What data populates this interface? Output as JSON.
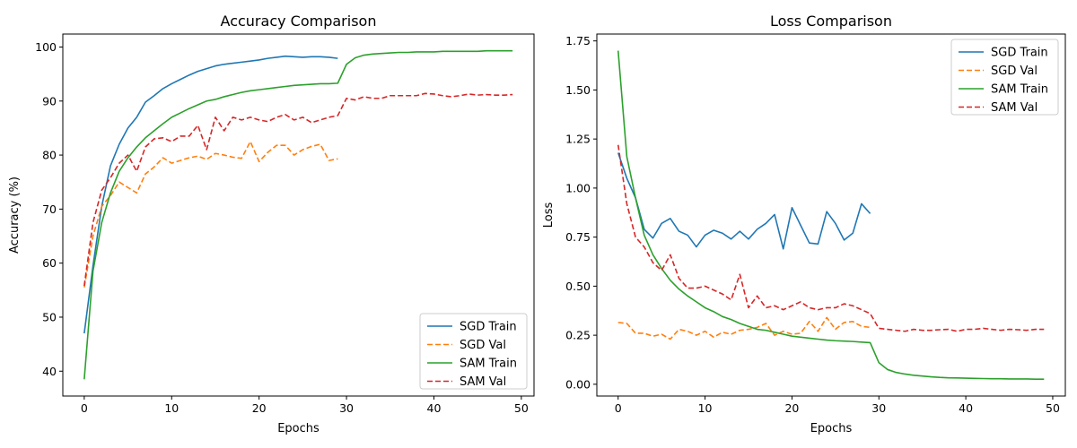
{
  "chart_data": [
    {
      "type": "line",
      "title": "Accuracy Comparison",
      "xlabel": "Epochs",
      "ylabel": "Accuracy (%)",
      "xlim": [
        -2.45,
        51.45
      ],
      "ylim": [
        35.4,
        102.4
      ],
      "xticks": [
        0,
        10,
        20,
        30,
        40,
        50
      ],
      "yticks": [
        40,
        50,
        60,
        70,
        80,
        90,
        100
      ],
      "legend_position": "lower right",
      "grid": false,
      "series": [
        {
          "name": "SGD Train",
          "color": "#1f77b4",
          "dash": "solid",
          "x": [
            0,
            1,
            2,
            3,
            4,
            5,
            6,
            7,
            8,
            9,
            10,
            11,
            12,
            13,
            14,
            15,
            16,
            17,
            18,
            19,
            20,
            21,
            22,
            23,
            24,
            25,
            26,
            27,
            28,
            29
          ],
          "y": [
            47.0,
            59.5,
            70.5,
            78.0,
            82.0,
            85.0,
            87.0,
            89.8,
            91.0,
            92.3,
            93.2,
            94.0,
            94.8,
            95.5,
            96.0,
            96.5,
            96.8,
            97.0,
            97.2,
            97.4,
            97.6,
            97.9,
            98.1,
            98.3,
            98.2,
            98.1,
            98.2,
            98.2,
            98.1,
            97.9
          ]
        },
        {
          "name": "SGD Val",
          "color": "#ff7f0e",
          "dash": "dashed",
          "x": [
            0,
            1,
            2,
            3,
            4,
            5,
            6,
            7,
            8,
            9,
            10,
            11,
            12,
            13,
            14,
            15,
            16,
            17,
            18,
            19,
            20,
            21,
            22,
            23,
            24,
            25,
            26,
            27,
            28,
            29
          ],
          "y": [
            55.5,
            65.0,
            70.5,
            72.5,
            75.0,
            74.0,
            73.0,
            76.5,
            77.8,
            79.5,
            78.5,
            79.0,
            79.5,
            79.8,
            79.2,
            80.3,
            80.0,
            79.6,
            79.4,
            82.5,
            78.8,
            80.5,
            81.8,
            81.8,
            80.0,
            81.0,
            81.6,
            82.0,
            79.0,
            79.3
          ]
        },
        {
          "name": "SAM Train",
          "color": "#2ca02c",
          "dash": "solid",
          "x": [
            0,
            1,
            2,
            3,
            4,
            5,
            6,
            7,
            8,
            9,
            10,
            11,
            12,
            13,
            14,
            15,
            16,
            17,
            18,
            19,
            20,
            21,
            22,
            23,
            24,
            25,
            26,
            27,
            28,
            29,
            30,
            31,
            32,
            33,
            34,
            35,
            36,
            37,
            38,
            39,
            40,
            41,
            42,
            43,
            44,
            45,
            46,
            47,
            48,
            49
          ],
          "y": [
            38.5,
            58.5,
            67.5,
            73.0,
            77.0,
            79.5,
            81.5,
            83.2,
            84.5,
            85.8,
            87.0,
            87.8,
            88.6,
            89.3,
            90.0,
            90.3,
            90.8,
            91.2,
            91.6,
            91.9,
            92.1,
            92.3,
            92.5,
            92.7,
            92.9,
            93.0,
            93.1,
            93.2,
            93.2,
            93.3,
            96.8,
            98.0,
            98.5,
            98.7,
            98.8,
            98.9,
            99.0,
            99.0,
            99.1,
            99.1,
            99.1,
            99.2,
            99.2,
            99.2,
            99.2,
            99.2,
            99.3,
            99.3,
            99.3,
            99.3
          ]
        },
        {
          "name": "SAM Val",
          "color": "#d62728",
          "dash": "dashed",
          "x": [
            0,
            1,
            2,
            3,
            4,
            5,
            6,
            7,
            8,
            9,
            10,
            11,
            12,
            13,
            14,
            15,
            16,
            17,
            18,
            19,
            20,
            21,
            22,
            23,
            24,
            25,
            26,
            27,
            28,
            29,
            30,
            31,
            32,
            33,
            34,
            35,
            36,
            37,
            38,
            39,
            40,
            41,
            42,
            43,
            44,
            45,
            46,
            47,
            48,
            49
          ],
          "y": [
            55.8,
            67.5,
            73.5,
            75.8,
            78.5,
            80.0,
            77.0,
            81.5,
            83.0,
            83.2,
            82.5,
            83.5,
            83.5,
            85.5,
            81.0,
            87.0,
            84.5,
            87.0,
            86.5,
            87.0,
            86.5,
            86.2,
            87.0,
            87.5,
            86.5,
            87.0,
            86.0,
            86.5,
            87.0,
            87.3,
            90.5,
            90.2,
            90.8,
            90.5,
            90.5,
            91.0,
            91.0,
            91.0,
            91.0,
            91.4,
            91.3,
            91.0,
            90.8,
            91.0,
            91.3,
            91.1,
            91.2,
            91.1,
            91.1,
            91.2
          ]
        }
      ]
    },
    {
      "type": "line",
      "title": "Loss Comparison",
      "xlabel": "Epochs",
      "ylabel": "Loss",
      "xlim": [
        -2.45,
        51.45
      ],
      "ylim": [
        -0.06,
        1.785
      ],
      "xticks": [
        0,
        10,
        20,
        30,
        40,
        50
      ],
      "yticks": [
        0.0,
        0.25,
        0.5,
        0.75,
        1.0,
        1.25,
        1.5,
        1.75
      ],
      "ytick_labels": [
        "0.00",
        "0.25",
        "0.50",
        "0.75",
        "1.00",
        "1.25",
        "1.50",
        "1.75"
      ],
      "legend_position": "upper right",
      "grid": false,
      "series": [
        {
          "name": "SGD Train",
          "color": "#1f77b4",
          "dash": "solid",
          "x": [
            0,
            1,
            2,
            3,
            4,
            5,
            6,
            7,
            8,
            9,
            10,
            11,
            12,
            13,
            14,
            15,
            16,
            17,
            18,
            19,
            20,
            21,
            22,
            23,
            24,
            25,
            26,
            27,
            28,
            29
          ],
          "y": [
            1.18,
            1.05,
            0.95,
            0.79,
            0.745,
            0.82,
            0.845,
            0.78,
            0.76,
            0.7,
            0.76,
            0.785,
            0.77,
            0.74,
            0.78,
            0.74,
            0.79,
            0.82,
            0.865,
            0.69,
            0.9,
            0.81,
            0.72,
            0.715,
            0.88,
            0.82,
            0.735,
            0.77,
            0.92,
            0.87
          ]
        },
        {
          "name": "SGD Val",
          "color": "#ff7f0e",
          "dash": "dashed",
          "x": [
            0,
            1,
            2,
            3,
            4,
            5,
            6,
            7,
            8,
            9,
            10,
            11,
            12,
            13,
            14,
            15,
            16,
            17,
            18,
            19,
            20,
            21,
            22,
            23,
            24,
            25,
            26,
            27,
            28,
            29
          ],
          "y": [
            0.315,
            0.31,
            0.26,
            0.26,
            0.245,
            0.255,
            0.23,
            0.28,
            0.27,
            0.25,
            0.27,
            0.24,
            0.265,
            0.255,
            0.275,
            0.28,
            0.29,
            0.31,
            0.25,
            0.27,
            0.255,
            0.26,
            0.32,
            0.27,
            0.34,
            0.28,
            0.315,
            0.32,
            0.295,
            0.29
          ]
        },
        {
          "name": "SAM Train",
          "color": "#2ca02c",
          "dash": "solid",
          "x": [
            0,
            1,
            2,
            3,
            4,
            5,
            6,
            7,
            8,
            9,
            10,
            11,
            12,
            13,
            14,
            15,
            16,
            17,
            18,
            19,
            20,
            21,
            22,
            23,
            24,
            25,
            26,
            27,
            28,
            29,
            30,
            31,
            32,
            33,
            34,
            35,
            36,
            37,
            38,
            39,
            40,
            41,
            42,
            43,
            44,
            45,
            46,
            47,
            48,
            49
          ],
          "y": [
            1.7,
            1.16,
            0.95,
            0.76,
            0.66,
            0.59,
            0.53,
            0.485,
            0.45,
            0.42,
            0.39,
            0.37,
            0.345,
            0.33,
            0.31,
            0.295,
            0.28,
            0.275,
            0.265,
            0.255,
            0.245,
            0.24,
            0.235,
            0.23,
            0.225,
            0.222,
            0.22,
            0.218,
            0.215,
            0.212,
            0.11,
            0.075,
            0.06,
            0.052,
            0.046,
            0.042,
            0.038,
            0.035,
            0.033,
            0.032,
            0.031,
            0.03,
            0.029,
            0.028,
            0.028,
            0.027,
            0.027,
            0.027,
            0.026,
            0.026
          ]
        },
        {
          "name": "SAM Val",
          "color": "#d62728",
          "dash": "dashed",
          "x": [
            0,
            1,
            2,
            3,
            4,
            5,
            6,
            7,
            8,
            9,
            10,
            11,
            12,
            13,
            14,
            15,
            16,
            17,
            18,
            19,
            20,
            21,
            22,
            23,
            24,
            25,
            26,
            27,
            28,
            29,
            30,
            31,
            32,
            33,
            34,
            35,
            36,
            37,
            38,
            39,
            40,
            41,
            42,
            43,
            44,
            45,
            46,
            47,
            48,
            49
          ],
          "y": [
            1.22,
            0.92,
            0.75,
            0.7,
            0.62,
            0.58,
            0.66,
            0.54,
            0.49,
            0.49,
            0.5,
            0.48,
            0.46,
            0.43,
            0.56,
            0.39,
            0.45,
            0.39,
            0.4,
            0.38,
            0.4,
            0.42,
            0.39,
            0.38,
            0.39,
            0.39,
            0.41,
            0.4,
            0.38,
            0.36,
            0.285,
            0.28,
            0.275,
            0.27,
            0.28,
            0.275,
            0.275,
            0.278,
            0.28,
            0.27,
            0.28,
            0.28,
            0.285,
            0.28,
            0.275,
            0.28,
            0.278,
            0.275,
            0.28,
            0.28
          ]
        }
      ]
    }
  ]
}
